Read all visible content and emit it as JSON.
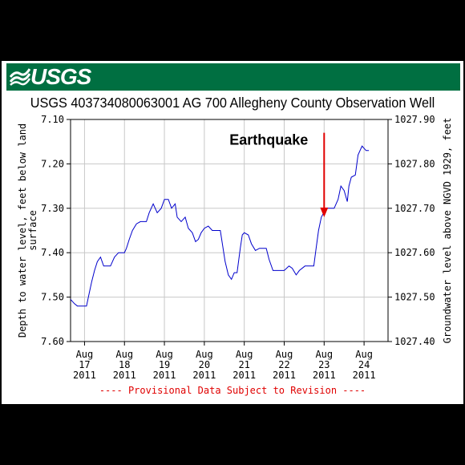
{
  "header": {
    "logo_text": "USGS",
    "title": "USGS 403734080063001 AG   700 Allegheny County Observation Well"
  },
  "footer": {
    "provisional_note": "---- Provisional Data Subject to Revision ----"
  },
  "colors": {
    "banner": "#006f41",
    "series": "#0000cc",
    "annotation_arrow": "#e00000",
    "provisional_text": "#e00000"
  },
  "chart_data": {
    "type": "line",
    "title": "USGS 403734080063001 AG   700 Allegheny County Observation Well",
    "xlabel": "",
    "ylabel": "Depth to water level, feet below land surface",
    "ylabel_right": "Groundwater level above NGVD 1929, feet",
    "y_inverted": true,
    "ylim": [
      7.1,
      7.6
    ],
    "ylim_right": [
      1027.9,
      1027.4
    ],
    "xlim": [
      16.65,
      24.6
    ],
    "grid": true,
    "yticks_left": [
      "7.10",
      "7.20",
      "7.30",
      "7.40",
      "7.50",
      "7.60"
    ],
    "yticks_right": [
      "1027.90",
      "1027.80",
      "1027.70",
      "1027.60",
      "1027.50",
      "1027.40"
    ],
    "xticks": [
      {
        "x": 17,
        "month": "Aug",
        "day": "17",
        "year": "2011"
      },
      {
        "x": 18,
        "month": "Aug",
        "day": "18",
        "year": "2011"
      },
      {
        "x": 19,
        "month": "Aug",
        "day": "19",
        "year": "2011"
      },
      {
        "x": 20,
        "month": "Aug",
        "day": "20",
        "year": "2011"
      },
      {
        "x": 21,
        "month": "Aug",
        "day": "21",
        "year": "2011"
      },
      {
        "x": 22,
        "month": "Aug",
        "day": "22",
        "year": "2011"
      },
      {
        "x": 23,
        "month": "Aug",
        "day": "23",
        "year": "2011"
      },
      {
        "x": 24,
        "month": "Aug",
        "day": "24",
        "year": "2011"
      }
    ],
    "annotations": [
      {
        "text": "Earthquake",
        "arrow_x": 23.0,
        "arrow_y_top": 7.13,
        "arrow_y_bottom": 7.32
      }
    ],
    "series": [
      {
        "values": [
          [
            16.65,
            7.505
          ],
          [
            16.75,
            7.515
          ],
          [
            16.82,
            7.52
          ],
          [
            17.0,
            7.52
          ],
          [
            17.05,
            7.52
          ],
          [
            17.12,
            7.49
          ],
          [
            17.18,
            7.465
          ],
          [
            17.25,
            7.44
          ],
          [
            17.32,
            7.42
          ],
          [
            17.4,
            7.41
          ],
          [
            17.48,
            7.43
          ],
          [
            17.55,
            7.43
          ],
          [
            17.65,
            7.43
          ],
          [
            17.75,
            7.41
          ],
          [
            17.85,
            7.4
          ],
          [
            18.0,
            7.4
          ],
          [
            18.05,
            7.39
          ],
          [
            18.12,
            7.37
          ],
          [
            18.2,
            7.35
          ],
          [
            18.3,
            7.335
          ],
          [
            18.4,
            7.33
          ],
          [
            18.55,
            7.33
          ],
          [
            18.62,
            7.31
          ],
          [
            18.72,
            7.29
          ],
          [
            18.82,
            7.31
          ],
          [
            18.92,
            7.3
          ],
          [
            19.0,
            7.28
          ],
          [
            19.1,
            7.28
          ],
          [
            19.18,
            7.3
          ],
          [
            19.27,
            7.29
          ],
          [
            19.32,
            7.32
          ],
          [
            19.42,
            7.33
          ],
          [
            19.52,
            7.32
          ],
          [
            19.6,
            7.345
          ],
          [
            19.7,
            7.355
          ],
          [
            19.78,
            7.375
          ],
          [
            19.85,
            7.37
          ],
          [
            19.92,
            7.355
          ],
          [
            20.0,
            7.345
          ],
          [
            20.1,
            7.34
          ],
          [
            20.2,
            7.35
          ],
          [
            20.4,
            7.35
          ],
          [
            20.52,
            7.42
          ],
          [
            20.6,
            7.45
          ],
          [
            20.68,
            7.46
          ],
          [
            20.75,
            7.445
          ],
          [
            20.82,
            7.445
          ],
          [
            20.9,
            7.39
          ],
          [
            20.95,
            7.36
          ],
          [
            21.0,
            7.355
          ],
          [
            21.1,
            7.36
          ],
          [
            21.18,
            7.38
          ],
          [
            21.28,
            7.395
          ],
          [
            21.38,
            7.39
          ],
          [
            21.55,
            7.39
          ],
          [
            21.62,
            7.415
          ],
          [
            21.72,
            7.44
          ],
          [
            22.0,
            7.44
          ],
          [
            22.12,
            7.43
          ],
          [
            22.2,
            7.435
          ],
          [
            22.3,
            7.45
          ],
          [
            22.38,
            7.44
          ],
          [
            22.52,
            7.43
          ],
          [
            22.68,
            7.43
          ],
          [
            22.74,
            7.43
          ],
          [
            22.8,
            7.39
          ],
          [
            22.86,
            7.35
          ],
          [
            22.93,
            7.32
          ],
          [
            23.05,
            7.3
          ],
          [
            23.25,
            7.3
          ],
          [
            23.35,
            7.28
          ],
          [
            23.42,
            7.25
          ],
          [
            23.5,
            7.26
          ],
          [
            23.58,
            7.285
          ],
          [
            23.62,
            7.25
          ],
          [
            23.68,
            7.23
          ],
          [
            23.78,
            7.225
          ],
          [
            23.85,
            7.18
          ],
          [
            23.95,
            7.16
          ],
          [
            24.05,
            7.17
          ],
          [
            24.12,
            7.17
          ]
        ]
      }
    ]
  }
}
